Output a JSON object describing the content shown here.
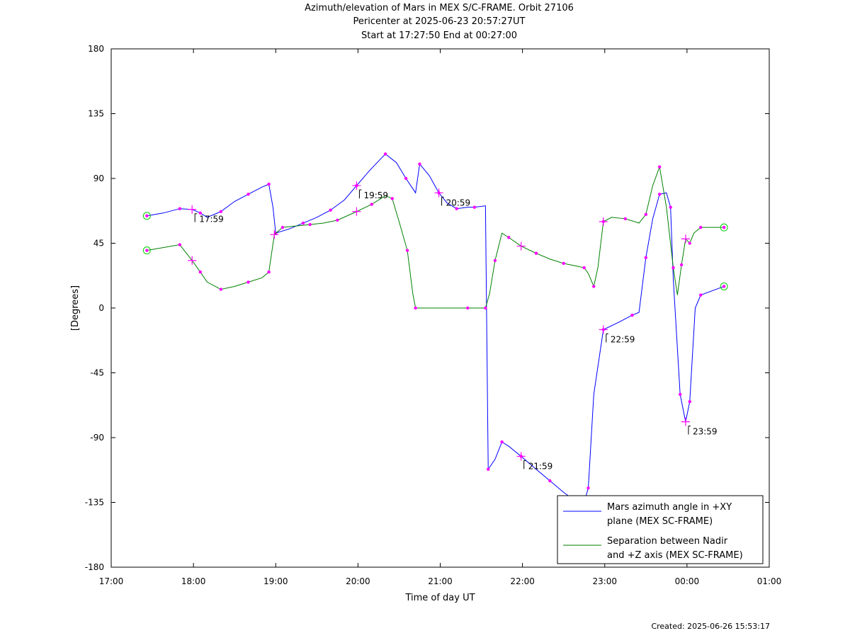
{
  "title_lines": [
    "Azimuth/elevation of Mars in MEX S/C-FRAME.  Orbit 27106",
    "Pericenter at 2025-06-23 20:57:27UT",
    "Start at 17:27:50 End at 00:27:00"
  ],
  "created": "Created: 2025-06-26 15:53:17",
  "chart_data": {
    "type": "line",
    "xlabel": "Time of day UT",
    "ylabel": "[Degrees]",
    "xlim": [
      "17:00",
      "01:00"
    ],
    "ylim": [
      -180,
      180
    ],
    "x_ticks": [
      "17:00",
      "18:00",
      "19:00",
      "20:00",
      "21:00",
      "22:00",
      "23:00",
      "00:00",
      "01:00"
    ],
    "y_ticks": [
      180,
      135,
      90,
      45,
      0,
      -45,
      -90,
      -135,
      -180
    ],
    "grid": false,
    "legend_position": "bottom-right",
    "hour_markers": [
      {
        "label": "17:59",
        "series": "azimuth"
      },
      {
        "label": "18:59",
        "series": "azimuth"
      },
      {
        "label": "19:59",
        "series": "azimuth"
      },
      {
        "label": "20:59",
        "series": "azimuth"
      },
      {
        "label": "21:59",
        "series": "azimuth"
      },
      {
        "label": "22:59",
        "series": "azimuth"
      },
      {
        "label": "23:59",
        "series": "azimuth"
      }
    ],
    "series": [
      {
        "name": "Mars azimuth angle in +XY plane (MEX SC-FRAME)",
        "legend_lines": [
          "Mars azimuth angle in +XY",
          "plane (MEX SC-FRAME)"
        ],
        "color": "#0000ff",
        "points": [
          [
            "17:26",
            64
          ],
          [
            "17:38",
            66
          ],
          [
            "17:50",
            69
          ],
          [
            "17:59",
            68.5
          ],
          [
            "18:05",
            66
          ],
          [
            "18:10",
            63
          ],
          [
            "18:20",
            67
          ],
          [
            "18:30",
            74
          ],
          [
            "18:40",
            79
          ],
          [
            "18:50",
            84
          ],
          [
            "18:55",
            86
          ],
          [
            "18:58",
            70
          ],
          [
            "19:00",
            52
          ],
          [
            "19:10",
            55
          ],
          [
            "19:20",
            59
          ],
          [
            "19:30",
            63
          ],
          [
            "19:40",
            68
          ],
          [
            "19:50",
            75
          ],
          [
            "19:59",
            85
          ],
          [
            "20:08",
            95
          ],
          [
            "20:20",
            107
          ],
          [
            "20:28",
            101
          ],
          [
            "20:35",
            90
          ],
          [
            "20:42",
            80
          ],
          [
            "20:45",
            100
          ],
          [
            "20:52",
            92
          ],
          [
            "20:59",
            80
          ],
          [
            "21:05",
            73
          ],
          [
            "21:12",
            69
          ],
          [
            "21:20",
            70
          ],
          [
            "21:25",
            70
          ],
          [
            "21:33",
            71
          ],
          [
            "21:35",
            -112
          ],
          [
            "21:40",
            -105
          ],
          [
            "21:45",
            -93
          ],
          [
            "21:50",
            -96
          ],
          [
            "21:59",
            -103
          ],
          [
            "22:10",
            -112
          ],
          [
            "22:20",
            -120
          ],
          [
            "22:30",
            -128
          ],
          [
            "22:40",
            -135
          ],
          [
            "22:45",
            -135
          ],
          [
            "22:48",
            -125
          ],
          [
            "22:52",
            -60
          ],
          [
            "22:59",
            -15
          ],
          [
            "23:10",
            -10
          ],
          [
            "23:20",
            -5
          ],
          [
            "23:25",
            -3
          ],
          [
            "23:30",
            35
          ],
          [
            "23:35",
            62
          ],
          [
            "23:40",
            79
          ],
          [
            "23:45",
            80
          ],
          [
            "23:48",
            70
          ],
          [
            "23:50",
            20
          ],
          [
            "23:55",
            -60
          ],
          [
            "23:59",
            -79
          ],
          [
            "24:02",
            -65
          ],
          [
            "24:06",
            0
          ],
          [
            "24:10",
            9
          ],
          [
            "24:27",
            15
          ]
        ]
      },
      {
        "name": "Separation between Nadir and +Z axis (MEX SC-FRAME)",
        "legend_lines": [
          "Separation between Nadir",
          "and +Z axis (MEX SC-FRAME)"
        ],
        "color": "#008000",
        "points": [
          [
            "17:26",
            40
          ],
          [
            "17:38",
            42
          ],
          [
            "17:50",
            44
          ],
          [
            "17:59",
            33
          ],
          [
            "18:05",
            25
          ],
          [
            "18:10",
            18
          ],
          [
            "18:20",
            13
          ],
          [
            "18:30",
            15
          ],
          [
            "18:40",
            18
          ],
          [
            "18:50",
            21
          ],
          [
            "18:55",
            25
          ],
          [
            "18:59",
            51
          ],
          [
            "19:05",
            56
          ],
          [
            "19:15",
            57
          ],
          [
            "19:25",
            58
          ],
          [
            "19:35",
            59
          ],
          [
            "19:45",
            61
          ],
          [
            "19:59",
            67
          ],
          [
            "20:10",
            72
          ],
          [
            "20:20",
            78
          ],
          [
            "20:25",
            76
          ],
          [
            "20:30",
            60
          ],
          [
            "20:36",
            40
          ],
          [
            "20:40",
            10
          ],
          [
            "20:42",
            0
          ],
          [
            "21:00",
            0
          ],
          [
            "21:20",
            0
          ],
          [
            "21:30",
            0
          ],
          [
            "21:33",
            0
          ],
          [
            "21:36",
            10
          ],
          [
            "21:40",
            33
          ],
          [
            "21:45",
            52
          ],
          [
            "21:50",
            49
          ],
          [
            "21:59",
            43
          ],
          [
            "22:10",
            38
          ],
          [
            "22:20",
            34
          ],
          [
            "22:30",
            31
          ],
          [
            "22:40",
            29
          ],
          [
            "22:45",
            28
          ],
          [
            "22:48",
            24
          ],
          [
            "22:52",
            15
          ],
          [
            "22:55",
            28
          ],
          [
            "22:59",
            60
          ],
          [
            "23:05",
            63
          ],
          [
            "23:15",
            62
          ],
          [
            "23:25",
            59
          ],
          [
            "23:30",
            65
          ],
          [
            "23:35",
            85
          ],
          [
            "23:40",
            98
          ],
          [
            "23:45",
            70
          ],
          [
            "23:50",
            28
          ],
          [
            "23:53",
            9
          ],
          [
            "23:56",
            30
          ],
          [
            "23:59",
            48
          ],
          [
            "24:02",
            45
          ],
          [
            "24:05",
            52
          ],
          [
            "24:10",
            56
          ],
          [
            "24:27",
            56
          ]
        ]
      }
    ]
  }
}
